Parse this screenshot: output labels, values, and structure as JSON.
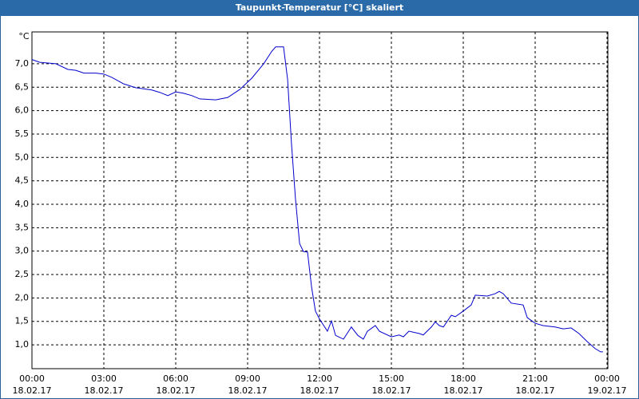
{
  "chart_data": {
    "type": "line",
    "title": "Taupunkt-Temperatur [°C] skaliert",
    "y_label": "°C",
    "series": [
      {
        "color": "#0000cc",
        "x": [
          0,
          0.33,
          1,
          1.5,
          1.83,
          2.17,
          2.67,
          3,
          3.33,
          3.83,
          4.33,
          5,
          5.33,
          5.67,
          6,
          6.33,
          6.67,
          7,
          7.67,
          8.17,
          8.67,
          9.17,
          9.67,
          10,
          10.17,
          10.5,
          10.67,
          10.83,
          11,
          11.17,
          11.33,
          11.5,
          11.67,
          11.83,
          12,
          12.33,
          12.5,
          12.67,
          13,
          13.33,
          13.6,
          13.83,
          14,
          14.33,
          14.5,
          15,
          15.33,
          15.5,
          15.73,
          16.17,
          16.33,
          16.67,
          16.83,
          17,
          17.17,
          17.5,
          17.67,
          18,
          18.33,
          18.5,
          19,
          19.33,
          19.5,
          19.67,
          20,
          20.5,
          20.67,
          21,
          21.33,
          21.83,
          22.17,
          22.5,
          22.83,
          23.17,
          23.5,
          23.73,
          23.83
        ],
        "values": [
          7.09,
          7.03,
          7.0,
          6.88,
          6.86,
          6.8,
          6.8,
          6.78,
          6.71,
          6.57,
          6.49,
          6.44,
          6.39,
          6.32,
          6.4,
          6.37,
          6.32,
          6.25,
          6.23,
          6.28,
          6.45,
          6.69,
          7.0,
          7.26,
          7.36,
          7.36,
          6.66,
          5.3,
          4.1,
          3.16,
          2.99,
          2.98,
          2.23,
          1.72,
          1.55,
          1.29,
          1.51,
          1.2,
          1.12,
          1.38,
          1.2,
          1.12,
          1.29,
          1.41,
          1.29,
          1.17,
          1.21,
          1.17,
          1.29,
          1.24,
          1.21,
          1.38,
          1.49,
          1.41,
          1.38,
          1.63,
          1.6,
          1.72,
          1.85,
          2.06,
          2.04,
          2.09,
          2.14,
          2.09,
          1.89,
          1.85,
          1.58,
          1.46,
          1.41,
          1.38,
          1.34,
          1.36,
          1.24,
          1.07,
          0.92,
          0.85,
          0.85
        ]
      }
    ],
    "xlim": [
      0,
      24
    ],
    "xticks": [
      {
        "value": 0,
        "label": "00:00",
        "date": "18.02.17"
      },
      {
        "value": 3,
        "label": "03:00",
        "date": "18.02.17"
      },
      {
        "value": 6,
        "label": "06:00",
        "date": "18.02.17"
      },
      {
        "value": 9,
        "label": "09:00",
        "date": "18.02.17"
      },
      {
        "value": 12,
        "label": "12:00",
        "date": "18.02.17"
      },
      {
        "value": 15,
        "label": "15:00",
        "date": "18.02.17"
      },
      {
        "value": 18,
        "label": "18:00",
        "date": "18.02.17"
      },
      {
        "value": 21,
        "label": "21:00",
        "date": "18.02.17"
      },
      {
        "value": 24,
        "label": "00:00",
        "date": "19.02.17"
      }
    ],
    "ylim": [
      0.49,
      7.68
    ],
    "yticks": [
      {
        "value": 1.0,
        "label": "1,0"
      },
      {
        "value": 1.5,
        "label": "1,5"
      },
      {
        "value": 2.0,
        "label": "2,0"
      },
      {
        "value": 2.5,
        "label": "2,5"
      },
      {
        "value": 3.0,
        "label": "3,0"
      },
      {
        "value": 3.5,
        "label": "3,5"
      },
      {
        "value": 4.0,
        "label": "4,0"
      },
      {
        "value": 4.5,
        "label": "4,5"
      },
      {
        "value": 5.0,
        "label": "5,0"
      },
      {
        "value": 5.5,
        "label": "5,5"
      },
      {
        "value": 6.0,
        "label": "6,0"
      },
      {
        "value": 6.5,
        "label": "6,5"
      },
      {
        "value": 7.0,
        "label": "7,0"
      }
    ],
    "grid": true
  }
}
